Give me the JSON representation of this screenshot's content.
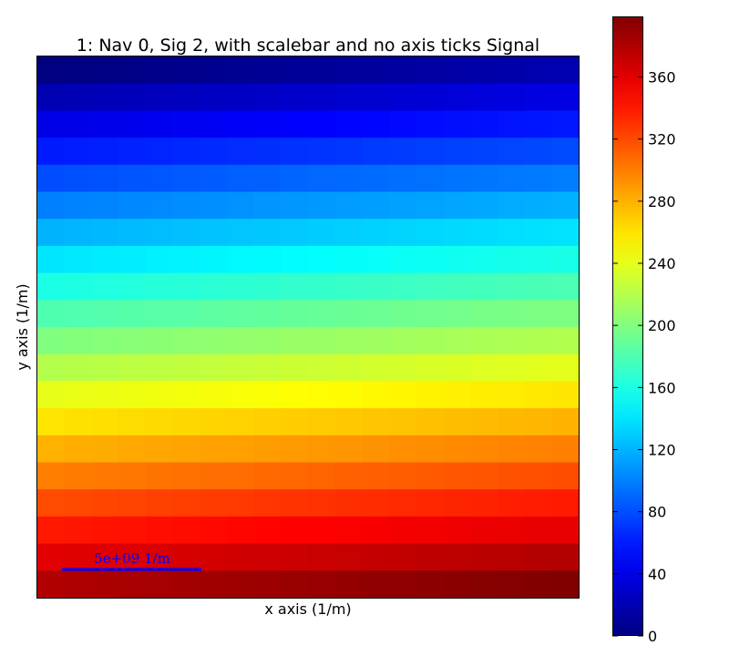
{
  "chart_data": {
    "type": "heatmap",
    "title": "1: Nav 0, Sig 2, with scalebar and no axis ticks Signal",
    "xlabel": "x axis (1/m)",
    "ylabel": "y axis (1/m)",
    "rows": 20,
    "cols": 20,
    "values_note_formula_free": true,
    "z_values": [
      [
        0,
        1,
        2,
        3,
        4,
        5,
        6,
        7,
        8,
        9,
        10,
        11,
        12,
        13,
        14,
        15,
        16,
        17,
        18,
        19
      ],
      [
        20,
        21,
        22,
        23,
        24,
        25,
        26,
        27,
        28,
        29,
        30,
        31,
        32,
        33,
        34,
        35,
        36,
        37,
        38,
        39
      ],
      [
        40,
        41,
        42,
        43,
        44,
        45,
        46,
        47,
        48,
        49,
        50,
        51,
        52,
        53,
        54,
        55,
        56,
        57,
        58,
        59
      ],
      [
        60,
        61,
        62,
        63,
        64,
        65,
        66,
        67,
        68,
        69,
        70,
        71,
        72,
        73,
        74,
        75,
        76,
        77,
        78,
        79
      ],
      [
        80,
        81,
        82,
        83,
        84,
        85,
        86,
        87,
        88,
        89,
        90,
        91,
        92,
        93,
        94,
        95,
        96,
        97,
        98,
        99
      ],
      [
        100,
        101,
        102,
        103,
        104,
        105,
        106,
        107,
        108,
        109,
        110,
        111,
        112,
        113,
        114,
        115,
        116,
        117,
        118,
        119
      ],
      [
        120,
        121,
        122,
        123,
        124,
        125,
        126,
        127,
        128,
        129,
        130,
        131,
        132,
        133,
        134,
        135,
        136,
        137,
        138,
        139
      ],
      [
        140,
        141,
        142,
        143,
        144,
        145,
        146,
        147,
        148,
        149,
        150,
        151,
        152,
        153,
        154,
        155,
        156,
        157,
        158,
        159
      ],
      [
        160,
        161,
        162,
        163,
        164,
        165,
        166,
        167,
        168,
        169,
        170,
        171,
        172,
        173,
        174,
        175,
        176,
        177,
        178,
        179
      ],
      [
        180,
        181,
        182,
        183,
        184,
        185,
        186,
        187,
        188,
        189,
        190,
        191,
        192,
        193,
        194,
        195,
        196,
        197,
        198,
        199
      ],
      [
        200,
        201,
        202,
        203,
        204,
        205,
        206,
        207,
        208,
        209,
        210,
        211,
        212,
        213,
        214,
        215,
        216,
        217,
        218,
        219
      ],
      [
        220,
        221,
        222,
        223,
        224,
        225,
        226,
        227,
        228,
        229,
        230,
        231,
        232,
        233,
        234,
        235,
        236,
        237,
        238,
        239
      ],
      [
        240,
        241,
        242,
        243,
        244,
        245,
        246,
        247,
        248,
        249,
        250,
        251,
        252,
        253,
        254,
        255,
        256,
        257,
        258,
        259
      ],
      [
        260,
        261,
        262,
        263,
        264,
        265,
        266,
        267,
        268,
        269,
        270,
        271,
        272,
        273,
        274,
        275,
        276,
        277,
        278,
        279
      ],
      [
        280,
        281,
        282,
        283,
        284,
        285,
        286,
        287,
        288,
        289,
        290,
        291,
        292,
        293,
        294,
        295,
        296,
        297,
        298,
        299
      ],
      [
        300,
        301,
        302,
        303,
        304,
        305,
        306,
        307,
        308,
        309,
        310,
        311,
        312,
        313,
        314,
        315,
        316,
        317,
        318,
        319
      ],
      [
        320,
        321,
        322,
        323,
        324,
        325,
        326,
        327,
        328,
        329,
        330,
        331,
        332,
        333,
        334,
        335,
        336,
        337,
        338,
        339
      ],
      [
        340,
        341,
        342,
        343,
        344,
        345,
        346,
        347,
        348,
        349,
        350,
        351,
        352,
        353,
        354,
        355,
        356,
        357,
        358,
        359
      ],
      [
        360,
        361,
        362,
        363,
        364,
        365,
        366,
        367,
        368,
        369,
        370,
        371,
        372,
        373,
        374,
        375,
        376,
        377,
        378,
        379
      ],
      [
        380,
        381,
        382,
        383,
        384,
        385,
        386,
        387,
        388,
        389,
        390,
        391,
        392,
        393,
        394,
        395,
        396,
        397,
        398,
        399
      ]
    ],
    "colormap": "jet",
    "colorbar": {
      "vmin": 0,
      "vmax": 399,
      "ticks": [
        0,
        40,
        80,
        120,
        160,
        200,
        240,
        280,
        320,
        360
      ]
    },
    "scalebar": {
      "label": "5e+09 1/m",
      "color": "#0000ff",
      "location": "lower-left"
    },
    "axis_ticks": false,
    "grid": false
  }
}
